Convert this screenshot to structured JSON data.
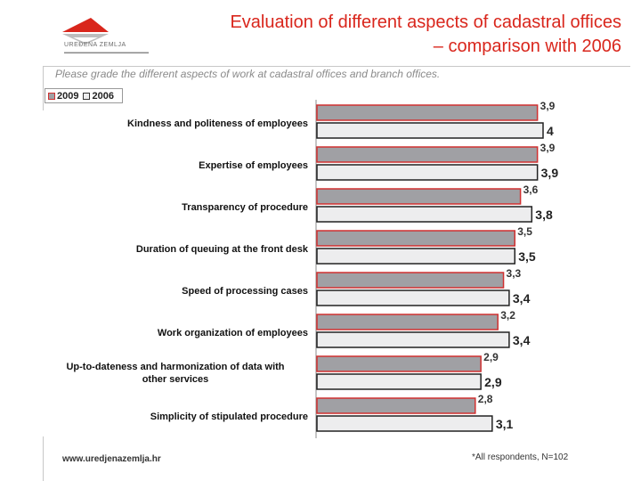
{
  "brand": {
    "name": "UREĐENA ZEMLJA"
  },
  "title": {
    "line1": "Evaluation of different aspects of cadastral offices",
    "line2": "– comparison with 2006"
  },
  "subtitle": "Please grade the different aspects of work at cadastral offices and branch offices.",
  "footer": {
    "website": "www.uredjenazemlja.hr",
    "note": "*All respondents, N=102"
  },
  "colors": {
    "title": "#d9261c",
    "series_2009": "#a0a0a4",
    "series_2009_border": "#d03030",
    "series_2006": "#ededee"
  },
  "chart_data": {
    "type": "bar",
    "orientation": "horizontal",
    "categories": [
      "Kindness and politeness of employees",
      "Expertise of employees",
      "Transparency of procedure",
      "Duration of queuing at the front desk",
      "Speed of processing cases",
      "Work organization of employees",
      "Up-to-dateness and harmonization of data with other services",
      "Simplicity of stipulated procedure"
    ],
    "series": [
      {
        "name": "2009",
        "values": [
          3.9,
          3.9,
          3.6,
          3.5,
          3.3,
          3.2,
          2.9,
          2.8
        ],
        "labels": [
          "3,9",
          "3,9",
          "3,6",
          "3,5",
          "3,3",
          "3,2",
          "2,9",
          "2,8"
        ]
      },
      {
        "name": "2006",
        "values": [
          4.0,
          3.9,
          3.8,
          3.5,
          3.4,
          3.4,
          2.9,
          3.1
        ],
        "labels": [
          "4",
          "3,9",
          "3,8",
          "3,5",
          "3,4",
          "3,4",
          "2,9",
          "3,1"
        ]
      }
    ],
    "legend_position": "top-left",
    "grid": false
  }
}
